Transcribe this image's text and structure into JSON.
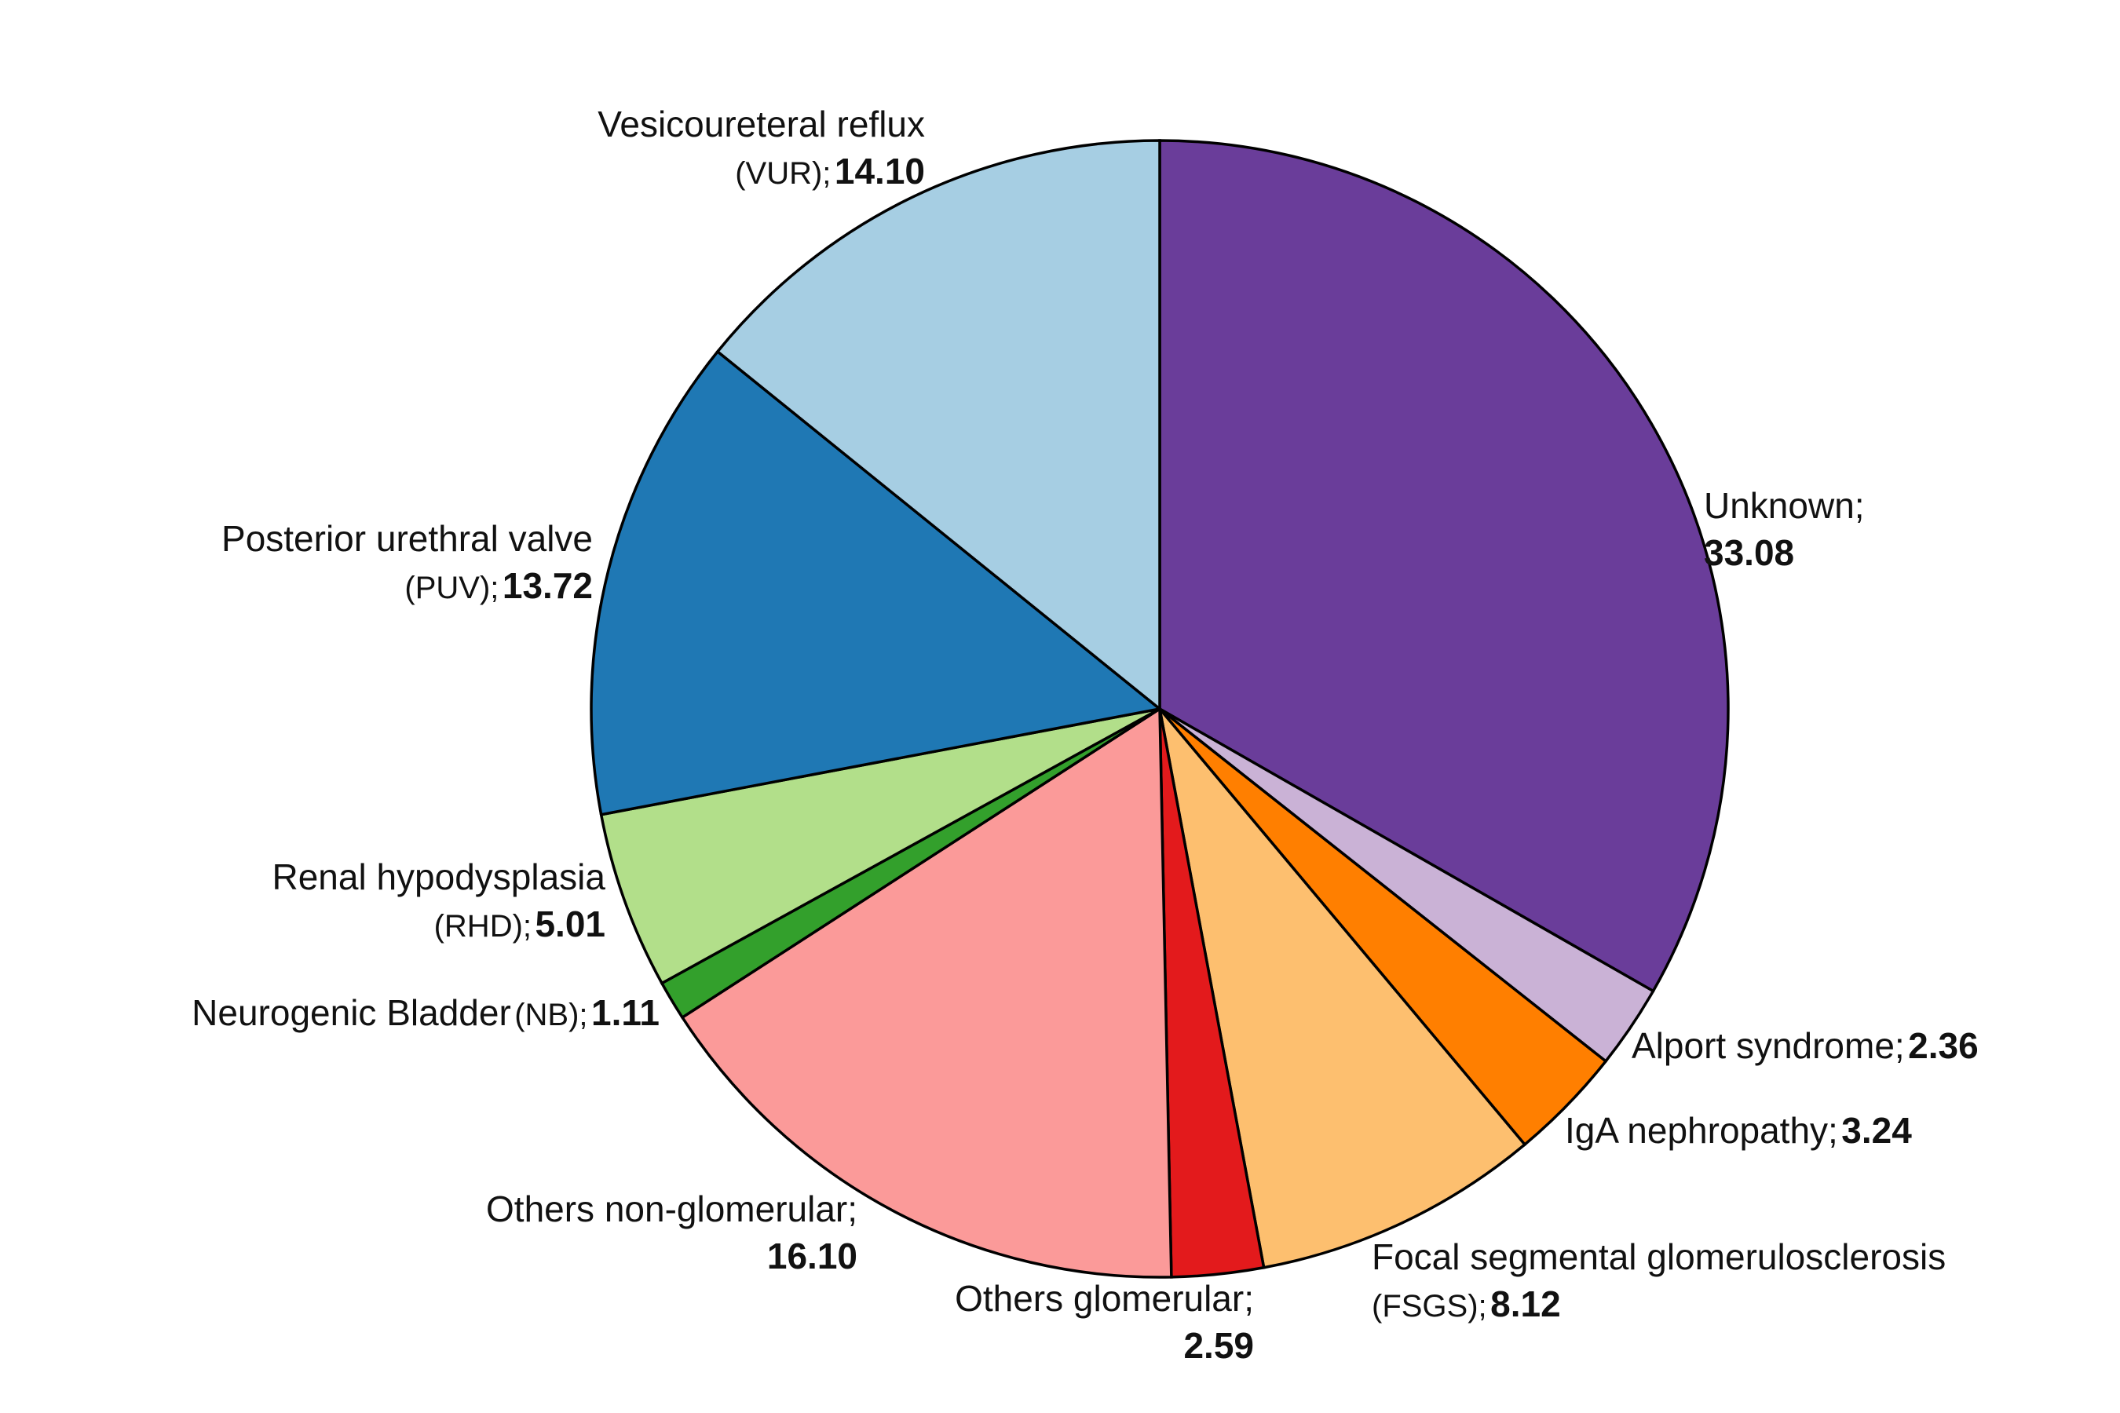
{
  "chart_data": {
    "type": "pie",
    "start": "top",
    "direction": "clockwise",
    "slices": [
      {
        "name": "Unknown;",
        "abbr": "",
        "value": 33.08,
        "value_text": "33.08",
        "color": "#6a3d9a"
      },
      {
        "name": "Alport syndrome;",
        "abbr": "",
        "value": 2.36,
        "value_text": "2.36",
        "color": "#cab2d6"
      },
      {
        "name": "IgA nephropathy;",
        "abbr": "",
        "value": 3.24,
        "value_text": "3.24",
        "color": "#ff7f00"
      },
      {
        "name": "Focal segmental glomerulosclerosis",
        "abbr": "(FSGS);",
        "value": 8.12,
        "value_text": "8.12",
        "color": "#fdbf6f"
      },
      {
        "name": "Others glomerular;",
        "abbr": "",
        "value": 2.59,
        "value_text": "2.59",
        "color": "#e31a1c"
      },
      {
        "name": "Others non-glomerular;",
        "abbr": "",
        "value": 16.1,
        "value_text": "16.10",
        "color": "#fb9a99"
      },
      {
        "name": "Neurogenic Bladder",
        "abbr": "(NB);",
        "value": 1.11,
        "value_text": "1.11",
        "color": "#33a02c"
      },
      {
        "name": "Renal hypodysplasia",
        "abbr": "(RHD);",
        "value": 5.01,
        "value_text": "5.01",
        "color": "#b2df8a"
      },
      {
        "name": "Posterior urethral valve",
        "abbr": "(PUV);",
        "value": 13.72,
        "value_text": "13.72",
        "color": "#1f78b4"
      },
      {
        "name": "Vesicoureteral reflux",
        "abbr": "(VUR);",
        "value": 14.1,
        "value_text": "14.10",
        "color": "#a6cee3"
      }
    ]
  }
}
